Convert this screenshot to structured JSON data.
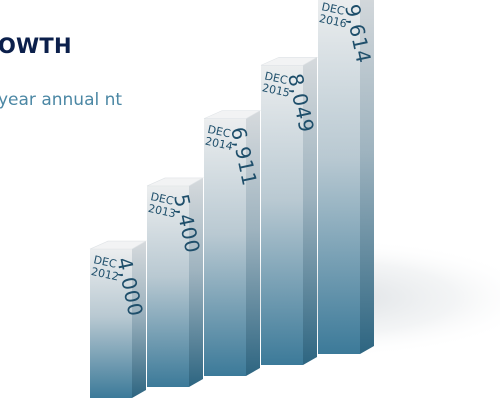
{
  "title": "OWTH",
  "subtitle": "year annual nt",
  "colors": {
    "title": "#0b1f4b",
    "subtitle": "#4b87a4",
    "bar_top": "#e9ebec",
    "bar_bottom": "#3f7d9c",
    "label": "#1f4f6b"
  },
  "chart_data": {
    "type": "bar",
    "style": "3d-columns",
    "categories": [
      "DEC 2012",
      "DEC 2013",
      "DEC 2014",
      "DEC 2015",
      "DEC 2016"
    ],
    "category_lines": [
      [
        "DEC",
        "2012"
      ],
      [
        "DEC",
        "2013"
      ],
      [
        "DEC",
        "2014"
      ],
      [
        "DEC",
        "2015"
      ],
      [
        "DEC",
        "2016"
      ]
    ],
    "values": [
      4000,
      5400,
      6911,
      8049,
      9614
    ],
    "value_labels": [
      "4,000",
      "5,400",
      "6,911",
      "8,049",
      "9,614"
    ],
    "ylim": [
      0,
      9614
    ],
    "grid": false,
    "legend": "none"
  }
}
